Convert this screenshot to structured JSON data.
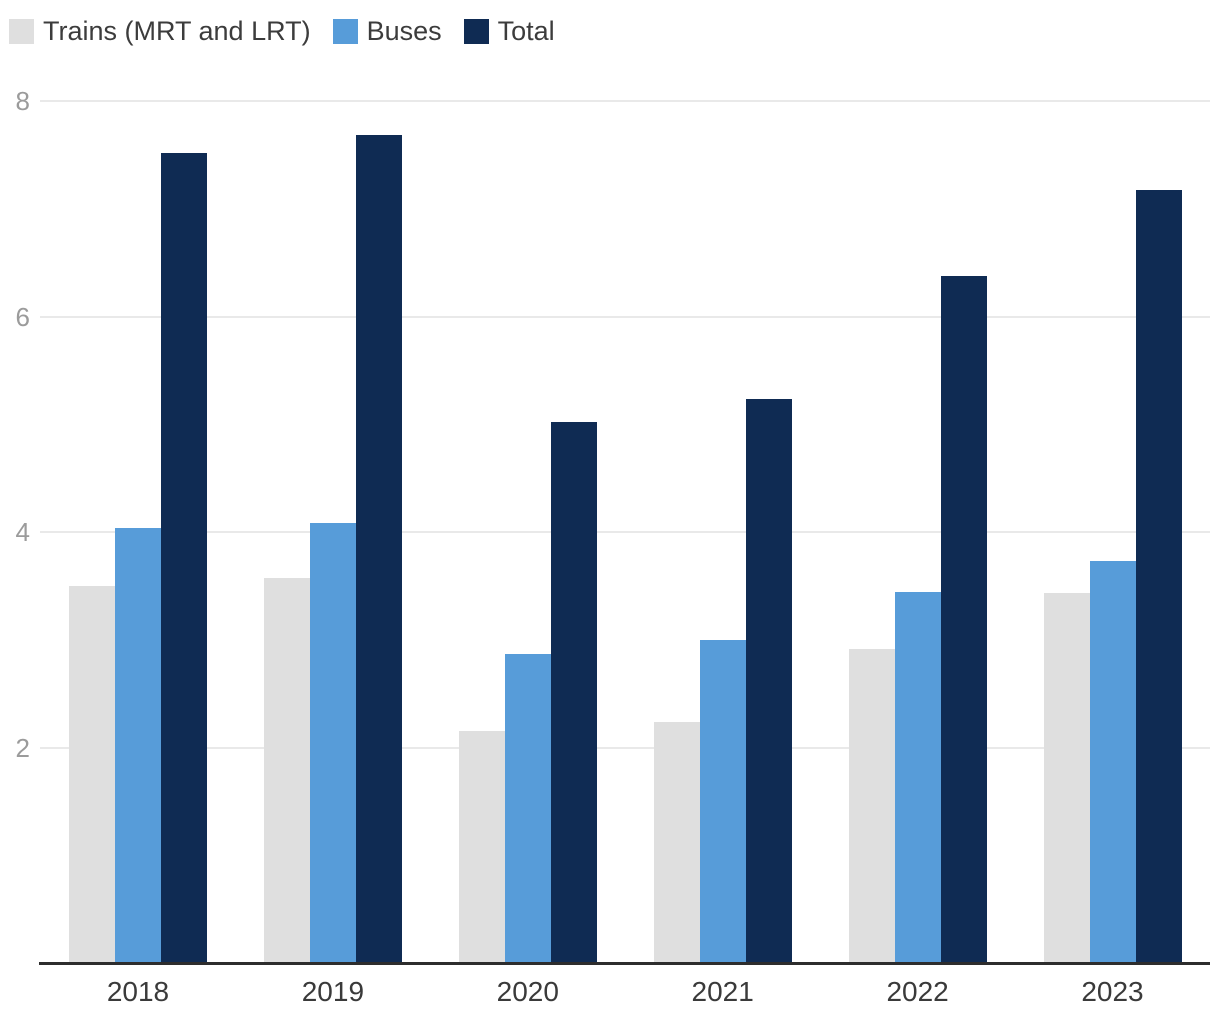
{
  "legend": {
    "items": [
      {
        "label": "Trains (MRT and LRT)",
        "color": "#dfdfdf"
      },
      {
        "label": "Buses",
        "color": "#579cd9"
      },
      {
        "label": "Total",
        "color": "#0f2b53"
      }
    ]
  },
  "chart_data": {
    "type": "bar",
    "title": "",
    "xlabel": "",
    "ylabel": "",
    "categories": [
      "2018",
      "2019",
      "2020",
      "2021",
      "2022",
      "2023"
    ],
    "series": [
      {
        "name": "Trains (MRT and LRT)",
        "color": "#dfdfdf",
        "values": [
          3.5,
          3.57,
          2.15,
          2.24,
          2.91,
          3.43
        ]
      },
      {
        "name": "Buses",
        "color": "#579cd9",
        "values": [
          4.04,
          4.08,
          2.87,
          3.0,
          3.44,
          3.73
        ]
      },
      {
        "name": "Total",
        "color": "#0f2b53",
        "values": [
          7.52,
          7.68,
          5.02,
          5.23,
          6.38,
          7.17
        ]
      }
    ],
    "ylim": [
      0,
      8.3
    ],
    "yticks": [
      2,
      4,
      6,
      8
    ],
    "grid": true,
    "legend_position": "top-left",
    "bar_group_layout": "grouped-no-inner-gap"
  },
  "colors": {
    "axis_line": "#2d2d2d",
    "gridline": "#e9e9e9",
    "y_tick_label": "#9b9b9b",
    "x_tick_label": "#3a3a3a",
    "legend_text": "#3c3c3c",
    "background": "#ffffff"
  }
}
